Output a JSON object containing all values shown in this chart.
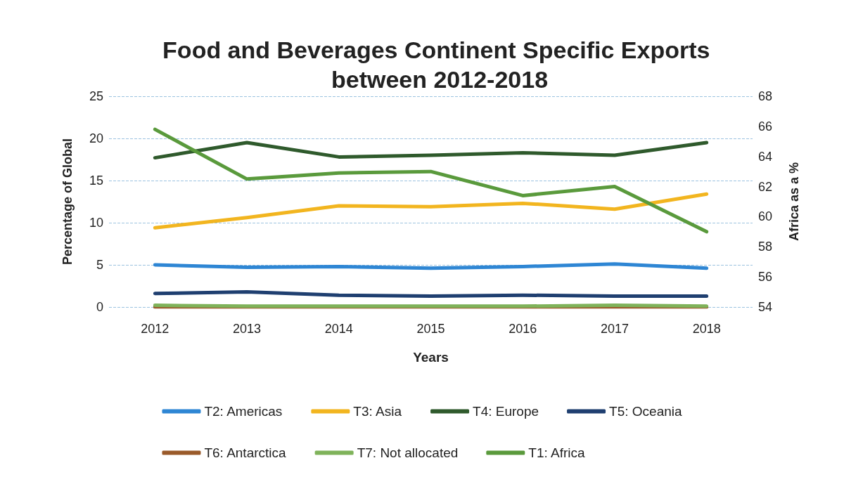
{
  "chart_data": {
    "type": "line",
    "title": "Food and Beverages Continent Specific Exports between 2012-2018",
    "xlabel": "Years",
    "ylabel": "Percentage of Global",
    "y2label": "Africa as a %",
    "categories": [
      "2012",
      "2013",
      "2014",
      "2015",
      "2016",
      "2017",
      "2018"
    ],
    "series": [
      {
        "name": "T2: Americas",
        "color": "#2e86d4",
        "values": [
          5.0,
          4.7,
          4.8,
          4.6,
          4.8,
          5.1,
          4.6
        ]
      },
      {
        "name": "T3: Asia",
        "color": "#f2b51f",
        "values": [
          9.4,
          10.6,
          12.0,
          11.9,
          12.3,
          11.6,
          13.4
        ]
      },
      {
        "name": "T4: Europe",
        "color": "#2f5a2c",
        "values": [
          17.7,
          19.5,
          17.8,
          18.0,
          18.3,
          18.0,
          19.5
        ]
      },
      {
        "name": "T5: Oceania",
        "color": "#1f3f70",
        "values": [
          1.6,
          1.8,
          1.4,
          1.3,
          1.4,
          1.3,
          1.3
        ]
      },
      {
        "name": "T6: Antarctica",
        "color": "#9a5a2a",
        "values": [
          0,
          0,
          0,
          0,
          0,
          0,
          0
        ]
      },
      {
        "name": "T7: Not allocated",
        "color": "#7fb35a",
        "values": [
          0.2,
          0.1,
          0.1,
          0.1,
          0.1,
          0.2,
          0.1
        ]
      },
      {
        "name": "T1: Africa",
        "color": "#5a9a3c",
        "axis": "y2",
        "values": [
          65.8,
          62.5,
          62.9,
          63.0,
          61.4,
          62.0,
          59.0
        ]
      }
    ],
    "ylim": [
      0,
      25
    ],
    "yticks": [
      0,
      5,
      10,
      15,
      20,
      25
    ],
    "y2lim": [
      54,
      68
    ],
    "y2ticks": [
      54,
      56,
      58,
      60,
      62,
      64,
      66,
      68
    ],
    "grid": "y",
    "legend": "bottom",
    "marker": "none",
    "line_style": "solid"
  }
}
